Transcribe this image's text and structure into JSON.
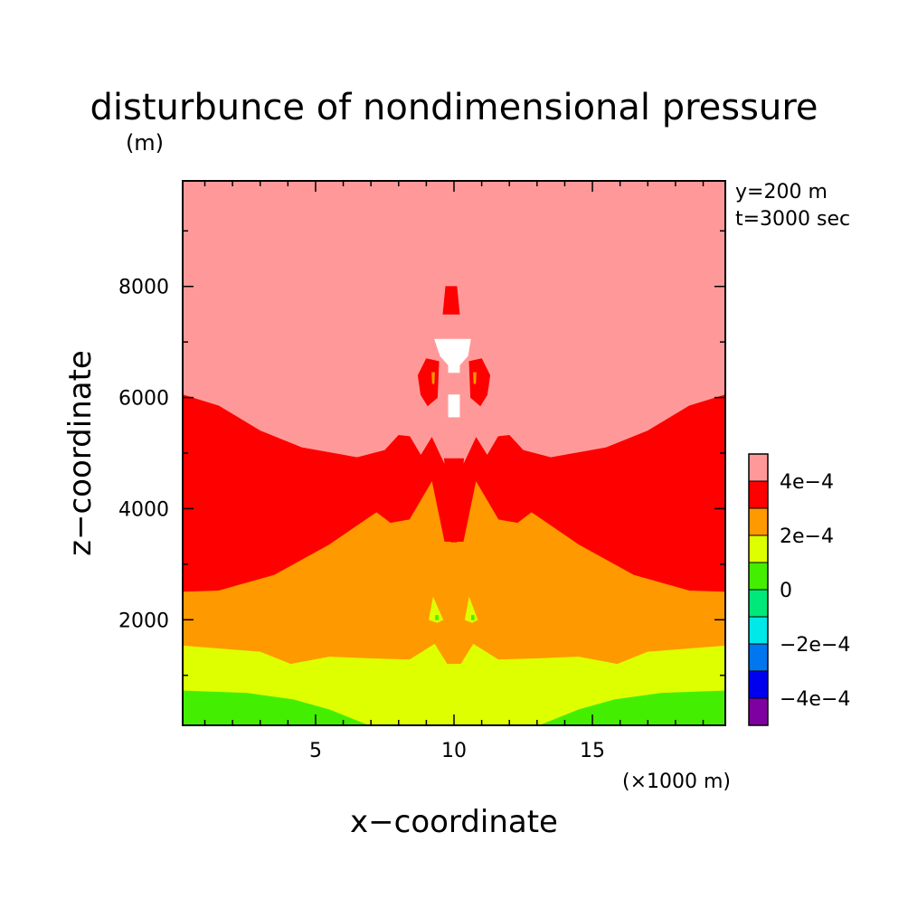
{
  "chart_data": {
    "type": "heatmap",
    "title": "disturbunce of nondimensional pressure",
    "subtitle": "",
    "xlabel": "x−coordinate",
    "ylabel": "z−coordinate",
    "x_unit": "(×1000 m)",
    "y_unit": "(m)",
    "annotations": [
      "y=200 m",
      "t=3000 sec"
    ],
    "xlim": [
      0.2,
      19.8
    ],
    "ylim": [
      100,
      9900
    ],
    "x_ticks": [
      5,
      10,
      15
    ],
    "x_tick_labels": [
      "5",
      "10",
      "15"
    ],
    "y_ticks": [
      2000,
      4000,
      6000,
      8000
    ],
    "y_tick_labels": [
      "2000",
      "4000",
      "6000",
      "8000"
    ],
    "colorbar": {
      "levels": [
        -0.0005,
        -0.0004,
        -0.0003,
        -0.0002,
        -0.0001,
        0,
        0.0001,
        0.0002,
        0.0003,
        0.0004,
        0.0005
      ],
      "colors": [
        "#7f00a0",
        "#0000ee",
        "#0077ee",
        "#00e8e8",
        "#00e87a",
        "#44ee00",
        "#ddff00",
        "#ff9900",
        "#ff0000",
        "#ff9999"
      ],
      "labels": [
        {
          "value": -0.0004,
          "text": "−4e−4"
        },
        {
          "value": -0.0002,
          "text": "−2e−4"
        },
        {
          "value": 0,
          "text": "0"
        },
        {
          "value": 0.0002,
          "text": "2e−4"
        },
        {
          "value": 0.0004,
          "text": "4e−4"
        }
      ]
    },
    "regions": [
      {
        "name": "band-above-4e-4",
        "color": "#ff9999",
        "points": [
          [
            0.2,
            9900
          ],
          [
            19.8,
            9900
          ],
          [
            19.8,
            100
          ],
          [
            0.2,
            100
          ]
        ]
      },
      {
        "name": "band-3e-4-to-4e-4",
        "color": "#ff0000",
        "points": [
          [
            0.2,
            6050
          ],
          [
            1.5,
            5850
          ],
          [
            3,
            5400
          ],
          [
            4.5,
            5100
          ],
          [
            6.5,
            4920
          ],
          [
            7.5,
            5050
          ],
          [
            8,
            5320
          ],
          [
            8.4,
            5300
          ],
          [
            8.8,
            4960
          ],
          [
            9.2,
            5280
          ],
          [
            9.7,
            4750
          ],
          [
            10.3,
            4750
          ],
          [
            10.8,
            5280
          ],
          [
            11.2,
            4960
          ],
          [
            11.6,
            5300
          ],
          [
            12,
            5320
          ],
          [
            12.5,
            5050
          ],
          [
            13.5,
            4920
          ],
          [
            15.5,
            5100
          ],
          [
            17,
            5400
          ],
          [
            18.5,
            5850
          ],
          [
            19.8,
            6050
          ],
          [
            19.8,
            100
          ],
          [
            0.2,
            100
          ]
        ]
      },
      {
        "name": "band-2e-4-to-3e-4",
        "color": "#ff9900",
        "points": [
          [
            0.2,
            2500
          ],
          [
            1.5,
            2520
          ],
          [
            3.5,
            2800
          ],
          [
            5.5,
            3350
          ],
          [
            7.2,
            3930
          ],
          [
            7.7,
            3740
          ],
          [
            8.4,
            3800
          ],
          [
            9.2,
            4480
          ],
          [
            9.65,
            3400
          ],
          [
            10.35,
            3400
          ],
          [
            10.8,
            4480
          ],
          [
            11.6,
            3800
          ],
          [
            12.3,
            3740
          ],
          [
            12.8,
            3930
          ],
          [
            14.5,
            3350
          ],
          [
            16.5,
            2800
          ],
          [
            18.5,
            2520
          ],
          [
            19.8,
            2500
          ],
          [
            19.8,
            100
          ],
          [
            0.2,
            100
          ]
        ]
      },
      {
        "name": "band-1e-4-to-2e-4",
        "color": "#ddff00",
        "points": [
          [
            0.2,
            1530
          ],
          [
            3,
            1420
          ],
          [
            4.1,
            1200
          ],
          [
            5.5,
            1330
          ],
          [
            7,
            1300
          ],
          [
            8.4,
            1280
          ],
          [
            9.3,
            1560
          ],
          [
            9.75,
            1200
          ],
          [
            10.25,
            1200
          ],
          [
            10.7,
            1560
          ],
          [
            11.6,
            1280
          ],
          [
            13,
            1300
          ],
          [
            14.5,
            1330
          ],
          [
            15.9,
            1200
          ],
          [
            17,
            1420
          ],
          [
            19.8,
            1530
          ],
          [
            19.8,
            100
          ],
          [
            0.2,
            100
          ]
        ]
      },
      {
        "name": "band-0-to-1e-4",
        "color": "#44ee00",
        "points": [
          [
            0.2,
            720
          ],
          [
            2.5,
            680
          ],
          [
            4.2,
            560
          ],
          [
            5.5,
            380
          ],
          [
            6.3,
            220
          ],
          [
            6.9,
            100
          ],
          [
            13.1,
            100
          ],
          [
            13.7,
            220
          ],
          [
            14.5,
            380
          ],
          [
            15.8,
            560
          ],
          [
            17.5,
            680
          ],
          [
            19.8,
            720
          ],
          [
            19.8,
            100
          ],
          [
            0.2,
            100
          ]
        ]
      },
      {
        "name": "center-low-red",
        "color": "#ff0000",
        "points": [
          [
            9.65,
            4900
          ],
          [
            10.35,
            4900
          ],
          [
            10.1,
            3400
          ],
          [
            9.9,
            3400
          ]
        ]
      },
      {
        "name": "upper-red-spot",
        "color": "#ff0000",
        "points": [
          [
            9.7,
            8000
          ],
          [
            10.1,
            8000
          ],
          [
            10.2,
            7500
          ],
          [
            9.6,
            7500
          ]
        ]
      },
      {
        "name": "left-lobe-red",
        "color": "#ff0000",
        "points": [
          [
            9.0,
            6700
          ],
          [
            9.45,
            6650
          ],
          [
            9.4,
            6000
          ],
          [
            9.05,
            5850
          ],
          [
            8.8,
            6050
          ],
          [
            8.7,
            6400
          ]
        ]
      },
      {
        "name": "right-lobe-red",
        "color": "#ff0000",
        "points": [
          [
            11.0,
            6700
          ],
          [
            10.55,
            6650
          ],
          [
            10.6,
            6000
          ],
          [
            10.95,
            5850
          ],
          [
            11.2,
            6050
          ],
          [
            11.3,
            6400
          ]
        ]
      },
      {
        "name": "left-lobe-orange",
        "color": "#ff9900",
        "points": [
          [
            9.2,
            6450
          ],
          [
            9.3,
            6450
          ],
          [
            9.28,
            6250
          ],
          [
            9.22,
            6250
          ]
        ]
      },
      {
        "name": "right-lobe-orange",
        "color": "#ff9900",
        "points": [
          [
            10.7,
            6450
          ],
          [
            10.8,
            6450
          ],
          [
            10.78,
            6250
          ],
          [
            10.72,
            6250
          ]
        ]
      },
      {
        "name": "white-blob-top",
        "color": "#ffffff",
        "points": [
          [
            9.3,
            7050
          ],
          [
            10.6,
            7050
          ],
          [
            10.5,
            6750
          ],
          [
            10.2,
            6580
          ],
          [
            10.2,
            6450
          ],
          [
            9.8,
            6450
          ],
          [
            9.8,
            6580
          ],
          [
            9.5,
            6750
          ]
        ]
      },
      {
        "name": "white-blob-bottom",
        "color": "#ffffff",
        "points": [
          [
            9.8,
            6050
          ],
          [
            10.2,
            6050
          ],
          [
            10.2,
            5650
          ],
          [
            9.8,
            5650
          ]
        ]
      },
      {
        "name": "yellow-spot-left",
        "color": "#ddff00",
        "points": [
          [
            9.25,
            2400
          ],
          [
            9.6,
            2000
          ],
          [
            9.4,
            1950
          ],
          [
            9.1,
            2000
          ]
        ]
      },
      {
        "name": "yellow-spot-right",
        "color": "#ddff00",
        "points": [
          [
            10.55,
            2400
          ],
          [
            10.85,
            2000
          ],
          [
            10.65,
            1950
          ],
          [
            10.4,
            2000
          ]
        ]
      },
      {
        "name": "green-dot-left",
        "color": "#44ee00",
        "points": [
          [
            9.33,
            2080
          ],
          [
            9.43,
            2080
          ],
          [
            9.43,
            2000
          ],
          [
            9.33,
            2000
          ]
        ]
      },
      {
        "name": "green-dot-right",
        "color": "#44ee00",
        "points": [
          [
            10.63,
            2080
          ],
          [
            10.73,
            2080
          ],
          [
            10.73,
            2000
          ],
          [
            10.63,
            2000
          ]
        ]
      }
    ]
  }
}
